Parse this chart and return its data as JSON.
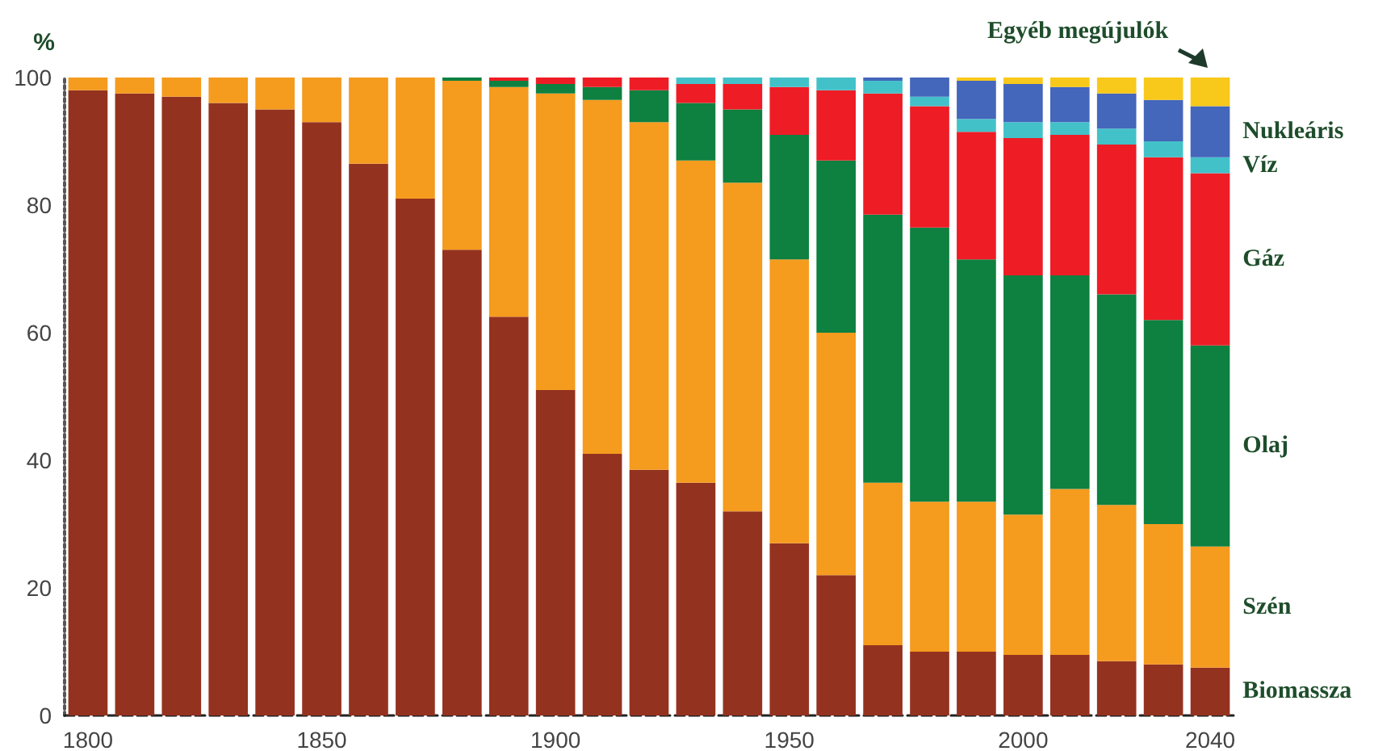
{
  "chart_data": {
    "type": "bar",
    "stacked": true,
    "ylabel": "%",
    "categories": [
      "1800",
      null,
      null,
      null,
      null,
      "1850",
      null,
      null,
      null,
      null,
      "1900",
      null,
      null,
      null,
      null,
      "1950",
      null,
      null,
      null,
      null,
      "2000",
      null,
      null,
      null,
      "2040"
    ],
    "ylim": [
      0,
      100
    ],
    "yticks": [
      0,
      20,
      40,
      60,
      80,
      100
    ],
    "series": [
      {
        "name": "Biomassza",
        "color": "#943220",
        "values": [
          98,
          97.5,
          97,
          96,
          95,
          93,
          86.5,
          81,
          73,
          62.5,
          51,
          41,
          38.5,
          36.5,
          32,
          27,
          22,
          11,
          10,
          10,
          9.5,
          9.5,
          8.5,
          8,
          7.5
        ]
      },
      {
        "name": "Szén",
        "color": "#f59b1e",
        "values": [
          2,
          2.5,
          3,
          4,
          5,
          7,
          13.5,
          19,
          26.5,
          36,
          46.5,
          55.5,
          54.5,
          50.5,
          51.5,
          44.5,
          38,
          25.5,
          23.5,
          23.5,
          22,
          26,
          24.5,
          22,
          19
        ]
      },
      {
        "name": "Olaj",
        "color": "#0e8040",
        "values": [
          0,
          0,
          0,
          0,
          0,
          0,
          0,
          0,
          0.5,
          1,
          1.5,
          2,
          5,
          9,
          11.5,
          19.5,
          27,
          42,
          43,
          38,
          37.5,
          33.5,
          33,
          32,
          31.5
        ]
      },
      {
        "name": "Gáz",
        "color": "#ee1c25",
        "values": [
          0,
          0,
          0,
          0,
          0,
          0,
          0,
          0,
          0,
          0.5,
          1,
          1.5,
          2,
          3,
          4,
          7.5,
          11,
          19,
          19,
          20,
          21.5,
          22,
          23.5,
          25.5,
          27
        ]
      },
      {
        "name": "Víz",
        "color": "#43c1c9",
        "values": [
          0,
          0,
          0,
          0,
          0,
          0,
          0,
          0,
          0,
          0,
          0,
          0,
          0,
          1,
          1,
          1.5,
          2,
          2,
          1.5,
          2,
          2.5,
          2,
          2.5,
          2.5,
          2.5
        ]
      },
      {
        "name": "Nukleáris",
        "color": "#4466bb",
        "values": [
          0,
          0,
          0,
          0,
          0,
          0,
          0,
          0,
          0,
          0,
          0,
          0,
          0,
          0,
          0,
          0,
          0,
          0.5,
          3,
          6,
          6,
          5.5,
          5.5,
          6.5,
          8
        ]
      },
      {
        "name": "Egyéb megújulók",
        "color": "#f8c81a",
        "values": [
          0,
          0,
          0,
          0,
          0,
          0,
          0,
          0,
          0,
          0,
          0,
          0,
          0,
          0,
          0,
          0,
          0,
          0,
          0,
          0.5,
          1,
          1.5,
          2.5,
          3.5,
          4.5
        ]
      }
    ]
  }
}
